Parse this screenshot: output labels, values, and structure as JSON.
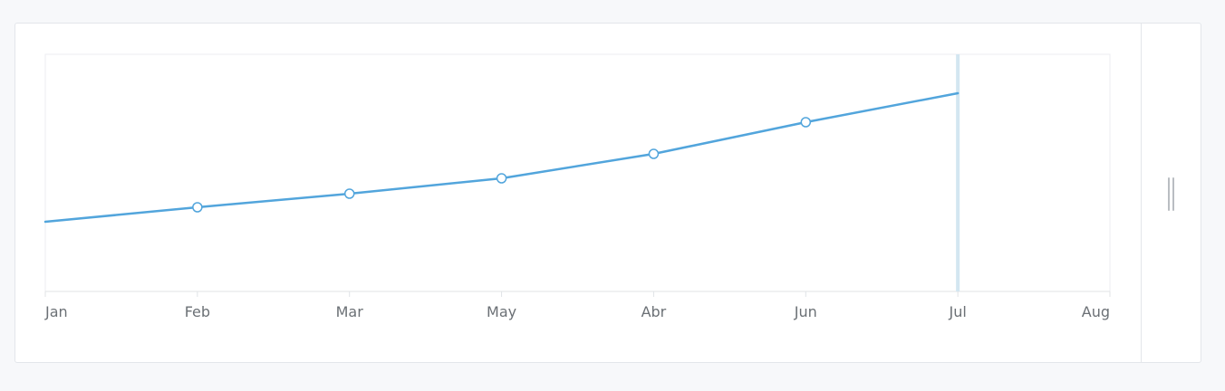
{
  "chart_data": {
    "type": "line",
    "categories": [
      "Jan",
      "Feb",
      "Mar",
      "May",
      "Abr",
      "Jun",
      "Jul",
      "Aug"
    ],
    "series": [
      {
        "values": [
          0,
          16,
          31,
          48,
          75,
          110,
          142,
          null
        ]
      }
    ],
    "title": "",
    "xlabel": "",
    "ylabel": "",
    "ylim": [
      -77,
      185
    ],
    "grid": false,
    "marker_current": "Jul",
    "colors": {
      "line": "#52a5dc",
      "marker_fill": "#ffffff",
      "current_marker": "#d3e6f1",
      "axis": "#e0e3e6",
      "tick_label": "#6b7075"
    }
  },
  "icons": {
    "resize_handle": "vertical-grip-icon"
  }
}
